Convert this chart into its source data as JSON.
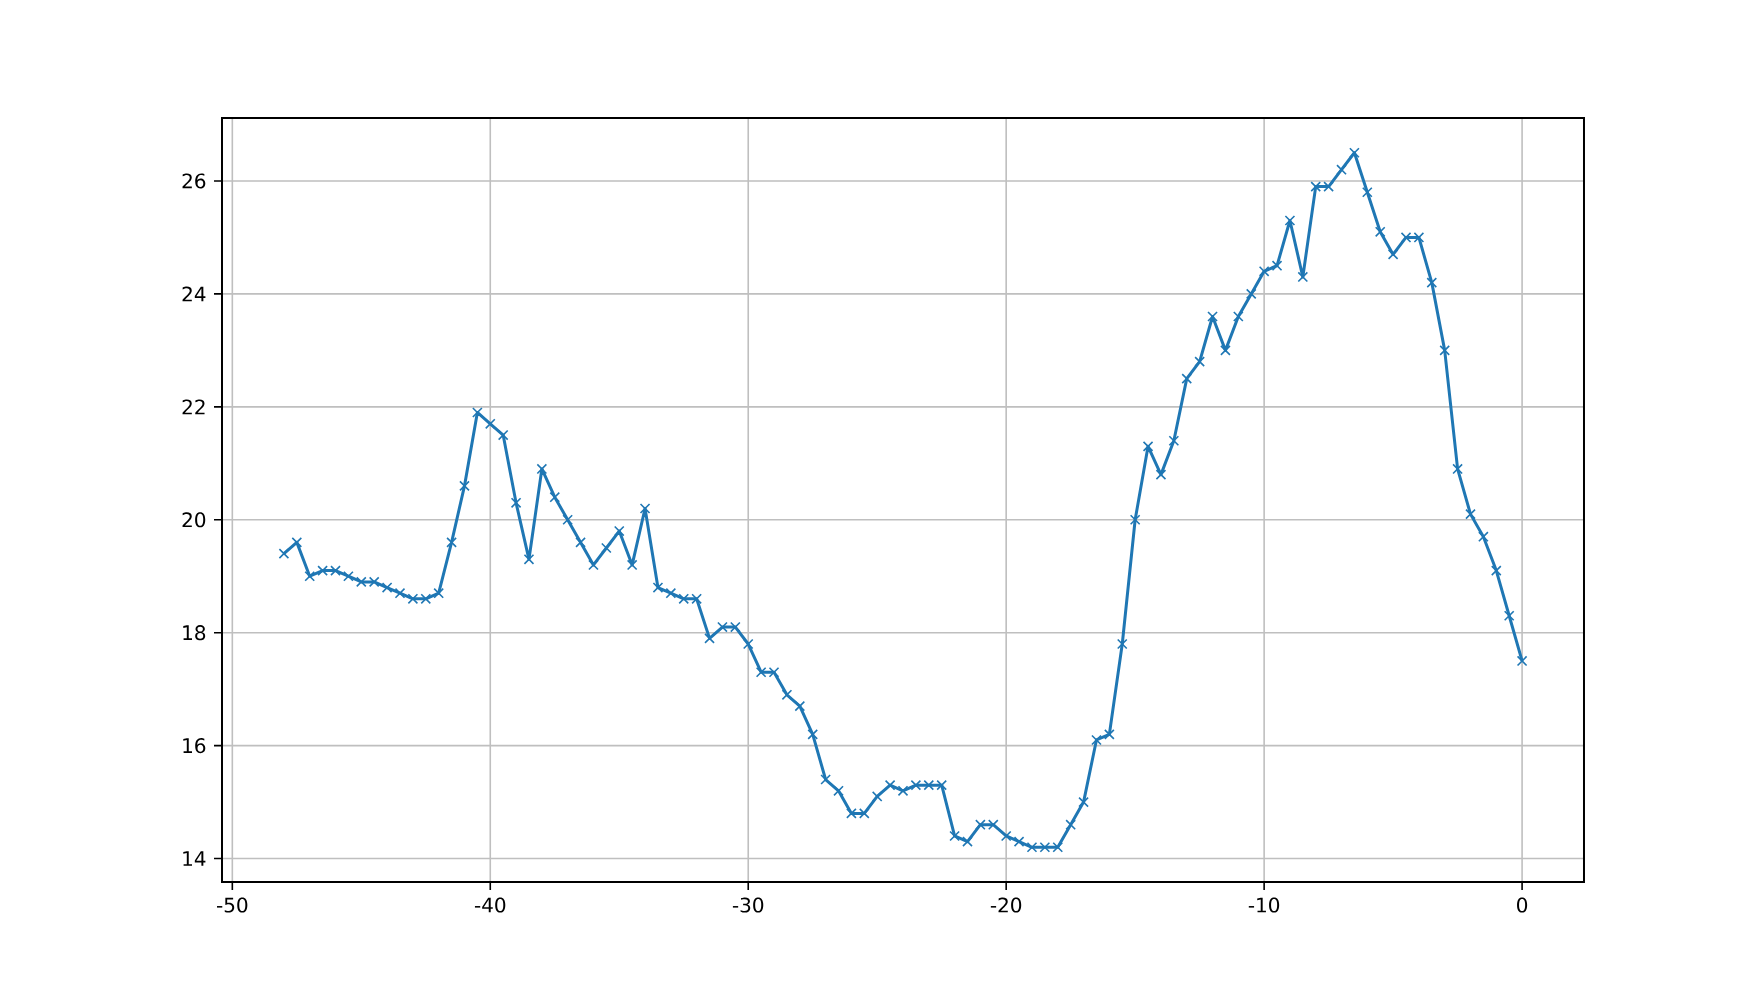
{
  "chart_data": {
    "type": "line",
    "x": [
      -48,
      -47.5,
      -47,
      -46.5,
      -46,
      -45.5,
      -45,
      -44.5,
      -44,
      -43.5,
      -43,
      -42.5,
      -42,
      -41.5,
      -41,
      -40.5,
      -40,
      -39.5,
      -39,
      -38.5,
      -38,
      -37.5,
      -37,
      -36.5,
      -36,
      -35.5,
      -35,
      -34.5,
      -34,
      -33.5,
      -33,
      -32.5,
      -32,
      -31.5,
      -31,
      -30.5,
      -30,
      -29.5,
      -29,
      -28.5,
      -28,
      -27.5,
      -27,
      -26.5,
      -26,
      -25.5,
      -25,
      -24.5,
      -24,
      -23.5,
      -23,
      -22.5,
      -22,
      -21.5,
      -21,
      -20.5,
      -20,
      -19.5,
      -19,
      -18.5,
      -18,
      -17.5,
      -17,
      -16.5,
      -16,
      -15.5,
      -15,
      -14.5,
      -14,
      -13.5,
      -13,
      -12.5,
      -12,
      -11.5,
      -11,
      -10.5,
      -10,
      -9.5,
      -9,
      -8.5,
      -8,
      -7.5,
      -7,
      -6.5,
      -6,
      -5.5,
      -5,
      -4.5,
      -4,
      -3.5,
      -3,
      -2.5,
      -2,
      -1.5,
      -1,
      -0.5,
      0
    ],
    "values": [
      19.4,
      19.6,
      19.0,
      19.1,
      19.1,
      19.0,
      18.9,
      18.9,
      18.8,
      18.7,
      18.6,
      18.6,
      18.7,
      19.6,
      20.6,
      21.9,
      21.7,
      21.5,
      20.3,
      19.3,
      20.9,
      20.4,
      20.0,
      19.6,
      19.2,
      19.5,
      19.8,
      19.2,
      20.2,
      18.8,
      18.7,
      18.6,
      18.6,
      17.9,
      18.1,
      18.1,
      17.8,
      17.3,
      17.3,
      16.9,
      16.7,
      16.2,
      15.4,
      15.2,
      14.8,
      14.8,
      15.1,
      15.3,
      15.2,
      15.3,
      15.3,
      15.3,
      14.4,
      14.3,
      14.6,
      14.6,
      14.4,
      14.3,
      14.2,
      14.2,
      14.2,
      14.6,
      15.0,
      16.1,
      16.2,
      17.8,
      20.0,
      21.3,
      20.8,
      21.4,
      22.5,
      22.8,
      23.6,
      23.0,
      23.6,
      24.0,
      24.4,
      24.5,
      25.3,
      24.3,
      25.9,
      25.9,
      26.2,
      26.5,
      25.8,
      25.1,
      24.7,
      25.0,
      25.0,
      24.2,
      23.0,
      20.9,
      20.1,
      19.7,
      19.1,
      18.3,
      17.5
    ],
    "color": "#1f77b4",
    "xlim": [
      -50.4,
      2.4
    ],
    "ylim": [
      13.585,
      27.115
    ],
    "xticks": [
      -50,
      -40,
      -30,
      -20,
      -10,
      0
    ],
    "yticks": [
      14,
      16,
      18,
      20,
      22,
      24,
      26
    ],
    "grid": true,
    "marker": "cross",
    "line_style": "solid"
  }
}
